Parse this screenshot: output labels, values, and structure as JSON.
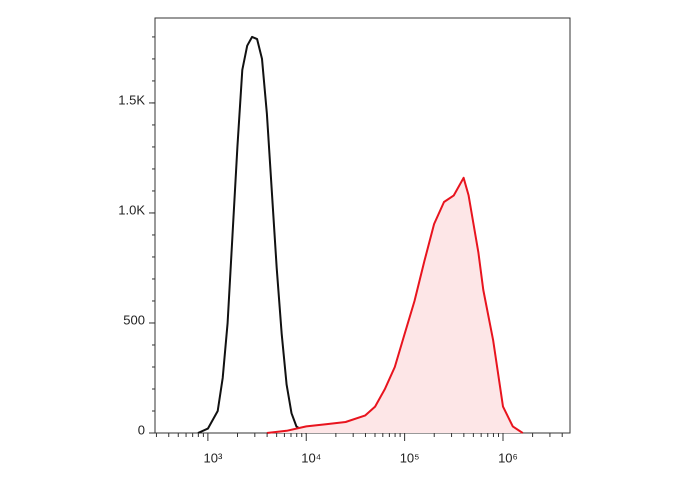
{
  "chart_data": {
    "type": "line",
    "xscale": "log",
    "xlim": [
      290,
      4800000
    ],
    "ylim": [
      0,
      1886
    ],
    "xticks": [
      {
        "value": 1000,
        "label": "10³"
      },
      {
        "value": 10000,
        "label": "10⁴"
      },
      {
        "value": 100000,
        "label": "10⁵"
      },
      {
        "value": 1000000,
        "label": "10⁶"
      }
    ],
    "yticks": [
      0,
      500,
      {
        "value": 1000,
        "label": "1.0K"
      },
      {
        "value": 1500,
        "label": "1.5K"
      }
    ],
    "series": [
      {
        "color": "#111111",
        "fill": null,
        "x": [
          794,
          1000,
          1259,
          1413,
          1585,
          1778,
          1995,
          2239,
          2512,
          2818,
          3162,
          3548,
          3981,
          4467,
          5012,
          5623,
          6310,
          7079,
          7943,
          10000
        ],
        "values": [
          0,
          20,
          100,
          250,
          500,
          900,
          1300,
          1650,
          1760,
          1800,
          1790,
          1700,
          1450,
          1100,
          750,
          450,
          220,
          90,
          30,
          0
        ]
      },
      {
        "color": "#e8141e",
        "fill": "#fde6e7",
        "x": [
          3981,
          6310,
          10000,
          15849,
          25119,
          39811,
          50119,
          63096,
          79433,
          100000,
          125893,
          158489,
          199526,
          251189,
          316228,
          398107,
          446684,
          501187,
          562341,
          630957,
          794328,
          1000000,
          1258925,
          1584893
        ],
        "values": [
          0,
          10,
          30,
          40,
          50,
          80,
          120,
          200,
          300,
          450,
          600,
          780,
          950,
          1050,
          1080,
          1160,
          1080,
          950,
          820,
          650,
          420,
          120,
          30,
          0
        ]
      }
    ]
  }
}
